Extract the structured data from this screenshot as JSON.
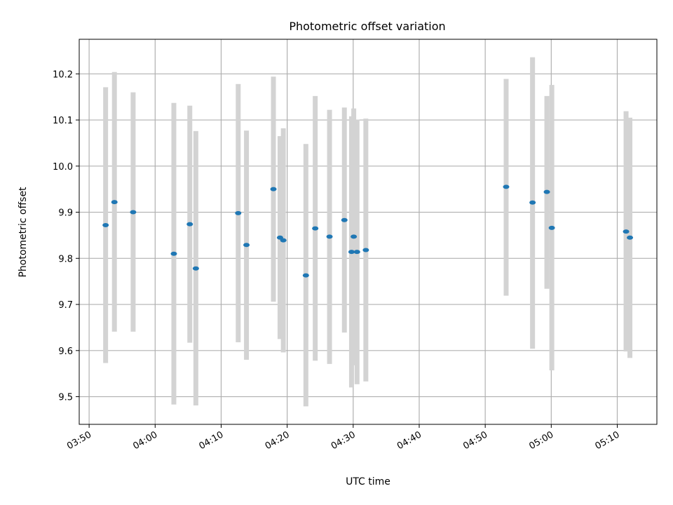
{
  "chart_data": {
    "type": "scatter",
    "title": "Photometric offset variation",
    "xlabel": "UTC time",
    "ylabel": "Photometric offset",
    "xlim": [
      "03:48:30",
      "05:16:00"
    ],
    "ylim": [
      9.44,
      10.275
    ],
    "x_ticks": [
      "03:50",
      "04:00",
      "04:10",
      "04:20",
      "04:30",
      "04:40",
      "04:50",
      "05:00",
      "05:10"
    ],
    "y_ticks": [
      9.5,
      9.6,
      9.7,
      9.8,
      9.9,
      10.0,
      10.1,
      10.2
    ],
    "grid": true,
    "colors": {
      "point": "#1f77b4",
      "error_bar": "#d3d3d3",
      "grid": "#b0b0b0"
    },
    "points": [
      {
        "t": "03:52:30",
        "y": 9.872,
        "lo": 9.573,
        "hi": 10.171
      },
      {
        "t": "03:53:50",
        "y": 9.922,
        "lo": 9.641,
        "hi": 10.204
      },
      {
        "t": "03:56:40",
        "y": 9.9,
        "lo": 9.641,
        "hi": 10.16
      },
      {
        "t": "04:02:50",
        "y": 9.81,
        "lo": 9.483,
        "hi": 10.137
      },
      {
        "t": "04:05:15",
        "y": 9.874,
        "lo": 9.617,
        "hi": 10.131
      },
      {
        "t": "04:06:10",
        "y": 9.778,
        "lo": 9.481,
        "hi": 10.076
      },
      {
        "t": "04:12:35",
        "y": 9.898,
        "lo": 9.618,
        "hi": 10.178
      },
      {
        "t": "04:13:50",
        "y": 9.829,
        "lo": 9.58,
        "hi": 10.077
      },
      {
        "t": "04:17:55",
        "y": 9.95,
        "lo": 9.706,
        "hi": 10.194
      },
      {
        "t": "04:18:55",
        "y": 9.845,
        "lo": 9.625,
        "hi": 10.065
      },
      {
        "t": "04:19:25",
        "y": 9.839,
        "lo": 9.596,
        "hi": 10.082
      },
      {
        "t": "04:22:50",
        "y": 9.763,
        "lo": 9.479,
        "hi": 10.048
      },
      {
        "t": "04:24:15",
        "y": 9.865,
        "lo": 9.578,
        "hi": 10.152
      },
      {
        "t": "04:26:25",
        "y": 9.847,
        "lo": 9.571,
        "hi": 10.122
      },
      {
        "t": "04:28:40",
        "y": 9.883,
        "lo": 9.639,
        "hi": 10.127
      },
      {
        "t": "04:29:45",
        "y": 9.814,
        "lo": 9.52,
        "hi": 10.108
      },
      {
        "t": "04:30:05",
        "y": 9.847,
        "lo": 9.568,
        "hi": 10.125
      },
      {
        "t": "04:30:35",
        "y": 9.814,
        "lo": 9.527,
        "hi": 10.101
      },
      {
        "t": "04:31:55",
        "y": 9.818,
        "lo": 9.533,
        "hi": 10.103
      },
      {
        "t": "04:53:10",
        "y": 9.955,
        "lo": 9.719,
        "hi": 10.189
      },
      {
        "t": "04:57:10",
        "y": 9.921,
        "lo": 9.604,
        "hi": 10.236
      },
      {
        "t": "04:59:20",
        "y": 9.944,
        "lo": 9.734,
        "hi": 10.152
      },
      {
        "t": "05:00:05",
        "y": 9.866,
        "lo": 9.557,
        "hi": 10.176
      },
      {
        "t": "05:11:20",
        "y": 9.858,
        "lo": 9.598,
        "hi": 10.119
      },
      {
        "t": "05:11:55",
        "y": 9.845,
        "lo": 9.584,
        "hi": 10.105
      }
    ]
  }
}
